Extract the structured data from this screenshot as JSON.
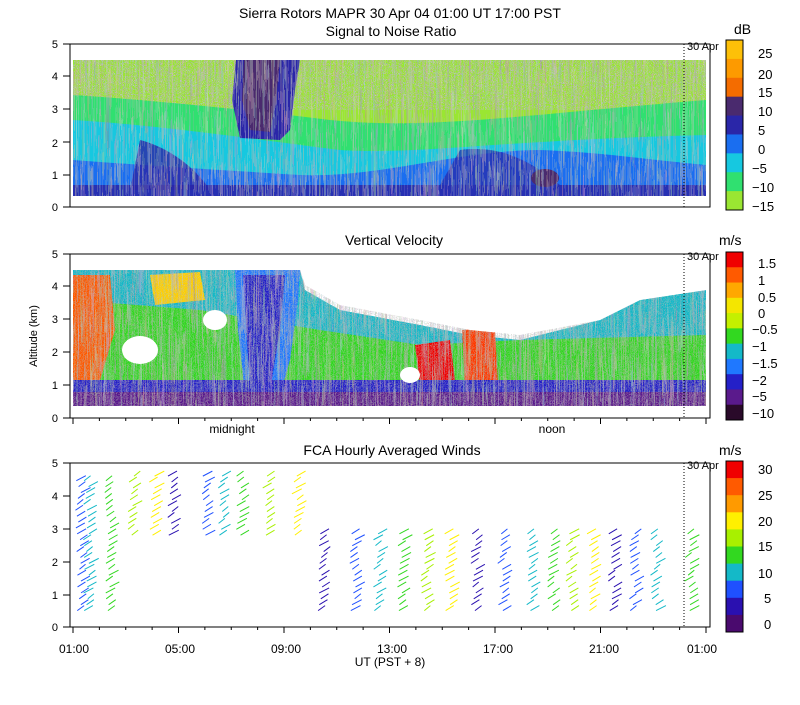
{
  "header": {
    "title": "Sierra Rotors  MAPR 30 Apr 04  01:00 UT  17:00  PST",
    "marker_label": "30 Apr"
  },
  "panels": {
    "snr": {
      "title": "Signal to Noise Ratio",
      "colorbar_unit": "dB",
      "colorbar_ticks": [
        "25",
        "20",
        "15",
        "10",
        "5",
        "0",
        "−5",
        "−10",
        "−15"
      ],
      "colorbar_colors": [
        "#fdc008",
        "#fd9a00",
        "#f46c00",
        "#4a2a6e",
        "#2a26a8",
        "#1a6ef0",
        "#16c8e0",
        "#30e070",
        "#9ae632"
      ]
    },
    "vv": {
      "title": "Vertical Velocity",
      "ylabel": "Altitude (km)",
      "colorbar_unit": "m/s",
      "colorbar_ticks": [
        "1.5",
        "1",
        "0.5",
        "0",
        "−0.5",
        "−1",
        "−1.5",
        "−2",
        "−5",
        "−10"
      ],
      "colorbar_colors": [
        "#f00000",
        "#ff5a00",
        "#ffa800",
        "#f4e600",
        "#c4f000",
        "#32d820",
        "#14b9c8",
        "#1f78ff",
        "#2420c8",
        "#5a1a8c",
        "#2a0a2a"
      ],
      "day_labels": [
        "midnight",
        "noon"
      ]
    },
    "winds": {
      "title": "FCA Hourly Averaged Winds",
      "colorbar_unit": "m/s",
      "colorbar_ticks": [
        "30",
        "25",
        "20",
        "15",
        "10",
        "5",
        "0"
      ],
      "colorbar_colors": [
        "#f00000",
        "#ff5a00",
        "#ff9a00",
        "#fff000",
        "#a8f000",
        "#32d820",
        "#14b9c8",
        "#1f50ff",
        "#2a10b0",
        "#4a0a6e"
      ]
    }
  },
  "axes": {
    "y_ticks": [
      "0",
      "1",
      "2",
      "3",
      "4",
      "5"
    ],
    "x_ticks": [
      "01:00",
      "05:00",
      "09:00",
      "13:00",
      "17:00",
      "21:00",
      "01:00"
    ],
    "xlabel": "UT  (PST + 8)"
  },
  "chart_data": [
    {
      "type": "heatmap",
      "title": "Signal to Noise Ratio",
      "xlabel": "UT (PST + 8)",
      "ylabel": "Altitude (km)",
      "x_range_hours": [
        1,
        25
      ],
      "ylim": [
        0,
        5
      ],
      "colorbar_range": [
        -15,
        25
      ],
      "colorbar_unit": "dB",
      "marker_hour": 24.1
    },
    {
      "type": "heatmap",
      "title": "Vertical Velocity",
      "xlabel": "UT (PST + 8)",
      "ylabel": "Altitude (km)",
      "x_range_hours": [
        1,
        25
      ],
      "ylim": [
        0,
        5
      ],
      "colorbar_range": [
        -10,
        1.5
      ],
      "colorbar_unit": "m/s",
      "marker_hour": 24.1
    },
    {
      "type": "scatter",
      "title": "FCA Hourly Averaged Winds",
      "xlabel": "UT (PST + 8)",
      "ylabel": "Altitude (km)",
      "x_range_hours": [
        1,
        25
      ],
      "ylim": [
        0,
        5
      ],
      "colorbar_range": [
        0,
        30
      ],
      "colorbar_unit": "m/s",
      "marker_hour": 24.1,
      "profiles_hours": [
        1.2,
        1.5,
        2.3,
        3.2,
        4.0,
        4.7,
        6.0,
        6.6,
        7.3,
        8.3,
        9.4,
        10.4,
        11.6,
        12.5,
        13.4,
        14.3,
        15.2,
        16.2,
        17.2,
        18.3,
        19.1,
        19.8,
        20.6,
        21.4,
        22.2,
        23.0,
        24.3
      ]
    }
  ]
}
